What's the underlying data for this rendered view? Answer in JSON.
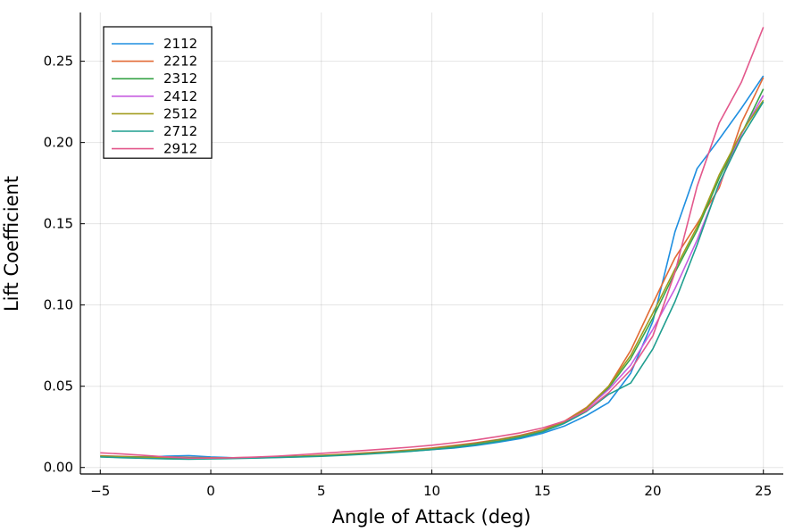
{
  "chart_data": {
    "type": "line",
    "title": "",
    "xlabel": "Angle of Attack (deg)",
    "ylabel": "Lift Coefficient",
    "xlim": [
      -5.9,
      25.9
    ],
    "ylim": [
      -0.004,
      0.28
    ],
    "xticks": [
      -5,
      0,
      5,
      10,
      15,
      20,
      25
    ],
    "xtick_labels": [
      "−5",
      "0",
      "5",
      "10",
      "15",
      "20",
      "25"
    ],
    "yticks": [
      0.0,
      0.05,
      0.1,
      0.15,
      0.2,
      0.25
    ],
    "ytick_labels": [
      "0.00",
      "0.05",
      "0.10",
      "0.15",
      "0.20",
      "0.25"
    ],
    "grid": true,
    "legend_position": "top-left",
    "x": [
      -5,
      -4,
      -3,
      -2,
      -1,
      0,
      1,
      2,
      3,
      4,
      5,
      6,
      7,
      8,
      9,
      10,
      11,
      12,
      13,
      14,
      15,
      16,
      17,
      18,
      19,
      20,
      21,
      22,
      23,
      24,
      25
    ],
    "series": [
      {
        "name": "2112",
        "color": "#1f8fe0",
        "values": [
          0.007,
          0.0066,
          0.0063,
          0.007,
          0.0073,
          0.0065,
          0.006,
          0.006,
          0.0063,
          0.0068,
          0.0073,
          0.0078,
          0.0085,
          0.0092,
          0.01,
          0.011,
          0.012,
          0.0135,
          0.0155,
          0.0178,
          0.021,
          0.0255,
          0.032,
          0.04,
          0.058,
          0.09,
          0.145,
          0.184,
          0.202,
          0.221,
          0.241
        ]
      },
      {
        "name": "2212",
        "color": "#e26a35",
        "values": [
          0.0072,
          0.0068,
          0.0065,
          0.0065,
          0.0062,
          0.006,
          0.006,
          0.0062,
          0.0065,
          0.007,
          0.0075,
          0.0082,
          0.009,
          0.0098,
          0.0108,
          0.012,
          0.0135,
          0.0152,
          0.0172,
          0.0198,
          0.023,
          0.0285,
          0.037,
          0.05,
          0.072,
          0.101,
          0.129,
          0.15,
          0.172,
          0.212,
          0.24
        ]
      },
      {
        "name": "2312",
        "color": "#3aa54a",
        "values": [
          0.007,
          0.0066,
          0.0063,
          0.0062,
          0.006,
          0.0059,
          0.0059,
          0.0061,
          0.0064,
          0.0068,
          0.0073,
          0.0079,
          0.0086,
          0.0094,
          0.0104,
          0.0115,
          0.013,
          0.0147,
          0.0168,
          0.0193,
          0.0225,
          0.028,
          0.036,
          0.049,
          0.067,
          0.092,
          0.12,
          0.146,
          0.178,
          0.205,
          0.233
        ]
      },
      {
        "name": "2412",
        "color": "#c65ee0",
        "values": [
          0.0068,
          0.0064,
          0.006,
          0.0058,
          0.0056,
          0.0056,
          0.0057,
          0.0059,
          0.0062,
          0.0066,
          0.0071,
          0.0077,
          0.0084,
          0.0092,
          0.0101,
          0.0112,
          0.0126,
          0.0143,
          0.0164,
          0.0189,
          0.0222,
          0.0278,
          0.036,
          0.048,
          0.063,
          0.085,
          0.11,
          0.14,
          0.174,
          0.205,
          0.229
        ]
      },
      {
        "name": "2512",
        "color": "#a19b1e",
        "values": [
          0.0069,
          0.0065,
          0.0061,
          0.0059,
          0.0057,
          0.0057,
          0.0058,
          0.006,
          0.0063,
          0.0067,
          0.0072,
          0.0078,
          0.0085,
          0.0093,
          0.0102,
          0.0113,
          0.0127,
          0.0144,
          0.0165,
          0.019,
          0.0223,
          0.028,
          0.0365,
          0.05,
          0.069,
          0.095,
          0.122,
          0.148,
          0.18,
          0.206,
          0.226
        ]
      },
      {
        "name": "2712",
        "color": "#1f9e8f",
        "values": [
          0.0065,
          0.006,
          0.0056,
          0.0053,
          0.0051,
          0.0053,
          0.0055,
          0.0058,
          0.0061,
          0.0065,
          0.0069,
          0.0075,
          0.0082,
          0.009,
          0.0099,
          0.011,
          0.0123,
          0.014,
          0.016,
          0.0185,
          0.0218,
          0.0272,
          0.0345,
          0.045,
          0.052,
          0.073,
          0.102,
          0.137,
          0.175,
          0.203,
          0.225
        ]
      },
      {
        "name": "2912",
        "color": "#e3588c",
        "values": [
          0.009,
          0.0083,
          0.0074,
          0.0065,
          0.0058,
          0.0058,
          0.006,
          0.0064,
          0.007,
          0.0078,
          0.0087,
          0.0096,
          0.0105,
          0.0115,
          0.0125,
          0.0137,
          0.0152,
          0.017,
          0.019,
          0.0213,
          0.0243,
          0.0285,
          0.035,
          0.046,
          0.06,
          0.081,
          0.12,
          0.173,
          0.212,
          0.237,
          0.271
        ]
      }
    ]
  }
}
